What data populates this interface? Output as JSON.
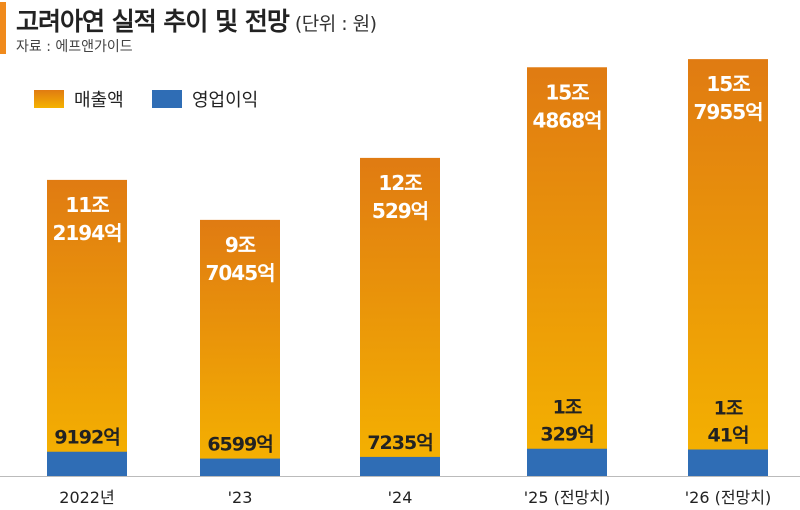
{
  "title": "고려아연 실적 추이 및 전망",
  "unit": "(단위 : 원)",
  "source": "자료 : 에프앤가이드",
  "colors": {
    "revenue_top": "#e07b12",
    "revenue_bottom": "#f5b300",
    "operating_profit": "#2f6db5",
    "accent": "#f08a1c"
  },
  "chart_data": {
    "type": "bar",
    "title": "고려아연 실적 추이 및 전망",
    "unit": "억원",
    "categories": [
      "2022년",
      "'23",
      "'24",
      "'25 (전망치)",
      "'26 (전망치)"
    ],
    "legend": [
      "매출액",
      "영업이익"
    ],
    "legend_position": "top-left",
    "grid": false,
    "series": [
      {
        "name": "매출액",
        "values": [
          112194,
          97045,
          120529,
          154868,
          157955
        ],
        "labels": [
          [
            "11조",
            "2194억"
          ],
          [
            "9조",
            "7045억"
          ],
          [
            "12조",
            "529억"
          ],
          [
            "15조",
            "4868억"
          ],
          [
            "15조",
            "7955억"
          ]
        ]
      },
      {
        "name": "영업이익",
        "values": [
          9192,
          6599,
          7235,
          10329,
          10041
        ],
        "labels": [
          [
            "9192억"
          ],
          [
            "6599억"
          ],
          [
            "7235억"
          ],
          [
            "1조",
            "329억"
          ],
          [
            "1조",
            "41억"
          ]
        ]
      }
    ]
  }
}
